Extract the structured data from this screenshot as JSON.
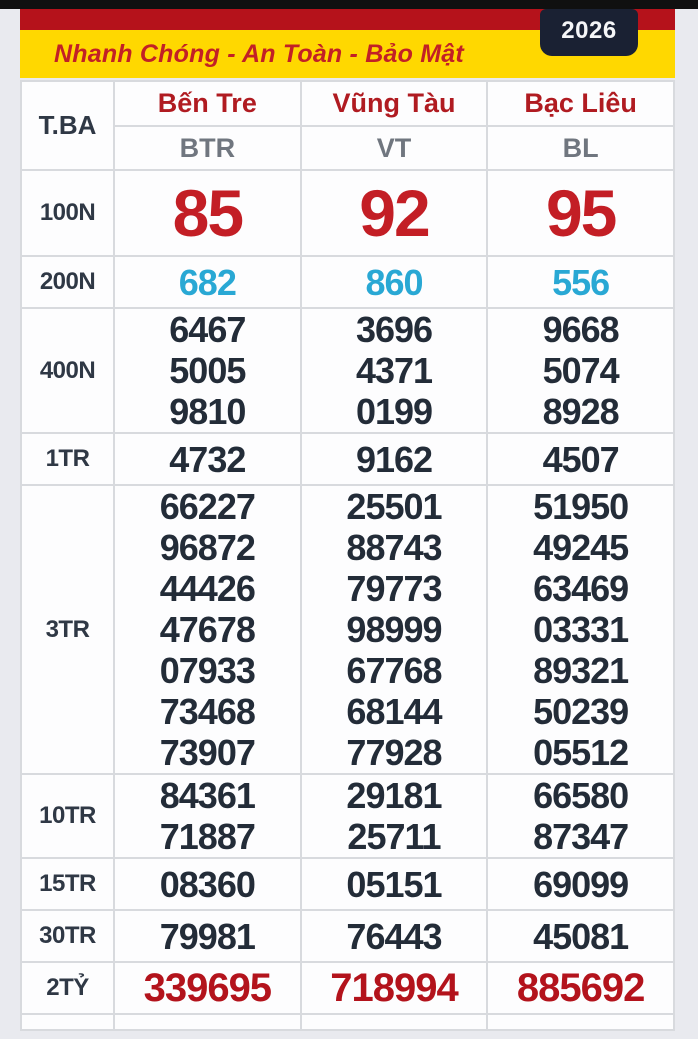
{
  "header": {
    "year_badge": "2026",
    "banner_text": "Nhanh Chóng - An Toàn - Bảo Mật"
  },
  "table": {
    "corner_label": "T.BA",
    "provinces": [
      {
        "name": "Bến Tre",
        "code": "BTR"
      },
      {
        "name": "Vũng Tàu",
        "code": "VT"
      },
      {
        "name": "Bạc Liêu",
        "code": "BL"
      }
    ],
    "rows": [
      {
        "label": "100N",
        "style": "big-red",
        "values": [
          [
            "85"
          ],
          [
            "92"
          ],
          [
            "95"
          ]
        ]
      },
      {
        "label": "200N",
        "style": "blue",
        "values": [
          [
            "682"
          ],
          [
            "860"
          ],
          [
            "556"
          ]
        ]
      },
      {
        "label": "400N",
        "style": "dark",
        "values": [
          [
            "6467",
            "5005",
            "9810"
          ],
          [
            "3696",
            "4371",
            "0199"
          ],
          [
            "9668",
            "5074",
            "8928"
          ]
        ]
      },
      {
        "label": "1TR",
        "style": "dark single",
        "values": [
          [
            "4732"
          ],
          [
            "9162"
          ],
          [
            "4507"
          ]
        ]
      },
      {
        "label": "3TR",
        "style": "dark",
        "values": [
          [
            "66227",
            "96872",
            "44426",
            "47678",
            "07933",
            "73468",
            "73907"
          ],
          [
            "25501",
            "88743",
            "79773",
            "98999",
            "67768",
            "68144",
            "77928"
          ],
          [
            "51950",
            "49245",
            "63469",
            "03331",
            "89321",
            "50239",
            "05512"
          ]
        ]
      },
      {
        "label": "10TR",
        "style": "dark",
        "values": [
          [
            "84361",
            "71887"
          ],
          [
            "29181",
            "25711"
          ],
          [
            "66580",
            "87347"
          ]
        ]
      },
      {
        "label": "15TR",
        "style": "dark single",
        "values": [
          [
            "08360"
          ],
          [
            "05151"
          ],
          [
            "69099"
          ]
        ]
      },
      {
        "label": "30TR",
        "style": "dark single",
        "values": [
          [
            "79981"
          ],
          [
            "76443"
          ],
          [
            "45081"
          ]
        ]
      },
      {
        "label": "2TỶ",
        "style": "red-bold",
        "values": [
          [
            "339695"
          ],
          [
            "718994"
          ],
          [
            "885692"
          ]
        ]
      }
    ]
  },
  "colors": {
    "bar-red": "#b5121b",
    "yellow": "#ffd800",
    "banner-red": "#c22026",
    "badge-bg": "#1a2133",
    "num-big-red": "#c31e25",
    "num-blue": "#29a8d4",
    "num-jackpot-red": "#b3131c",
    "province-red": "#b01b21"
  }
}
